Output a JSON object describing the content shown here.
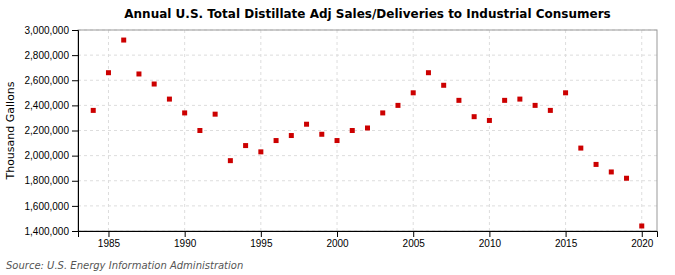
{
  "chart_data": {
    "type": "scatter",
    "title": "Annual U.S. Total Distillate Adj Sales/Deliveries to Industrial Consumers",
    "ylabel": "Thousand Gallons",
    "annotations": [
      "Source: U.S. Energy Information Administration"
    ],
    "x": [
      1984,
      1985,
      1986,
      1987,
      1988,
      1989,
      1990,
      1991,
      1992,
      1993,
      1994,
      1995,
      1996,
      1997,
      1998,
      1999,
      2000,
      2001,
      2002,
      2003,
      2004,
      2005,
      2006,
      2007,
      2008,
      2009,
      2010,
      2011,
      2012,
      2013,
      2014,
      2015,
      2016,
      2017,
      2018,
      2019,
      2020
    ],
    "values": [
      2360000,
      2660000,
      2920000,
      2650000,
      2570000,
      2450000,
      2340000,
      2200000,
      2330000,
      1960000,
      2080000,
      2030000,
      2120000,
      2160000,
      2250000,
      2170000,
      2120000,
      2200000,
      2220000,
      2340000,
      2400000,
      2500000,
      2660000,
      2560000,
      2440000,
      2310000,
      2280000,
      2440000,
      2450000,
      2400000,
      2360000,
      2500000,
      2060000,
      1930000,
      1870000,
      1820000,
      1440000
    ],
    "color": "#cc0000",
    "marker": "square",
    "xlim": [
      1983,
      2021
    ],
    "xticks": [
      1985,
      1990,
      1995,
      2000,
      2005,
      2010,
      2015,
      2020
    ],
    "ylim": [
      1400000,
      3000000
    ],
    "yticks": [
      {
        "value": 1400000,
        "label": "1,400,000"
      },
      {
        "value": 1600000,
        "label": "1,600,000"
      },
      {
        "value": 1800000,
        "label": "1,800,000"
      },
      {
        "value": 2000000,
        "label": "2,000,000"
      },
      {
        "value": 2200000,
        "label": "2,200,000"
      },
      {
        "value": 2400000,
        "label": "2,400,000"
      },
      {
        "value": 2600000,
        "label": "2,600,000"
      },
      {
        "value": 2800000,
        "label": "2,800,000"
      },
      {
        "value": 3000000,
        "label": "3,000,000"
      }
    ],
    "grid": true
  }
}
